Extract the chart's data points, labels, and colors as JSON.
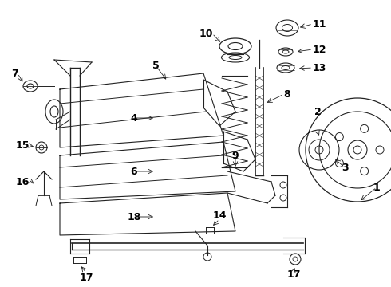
{
  "bg_color": "#ffffff",
  "lc": "#222222",
  "figsize": [
    4.9,
    3.6
  ],
  "dpi": 100,
  "xlim": [
    0,
    490
  ],
  "ylim": [
    0,
    360
  ]
}
